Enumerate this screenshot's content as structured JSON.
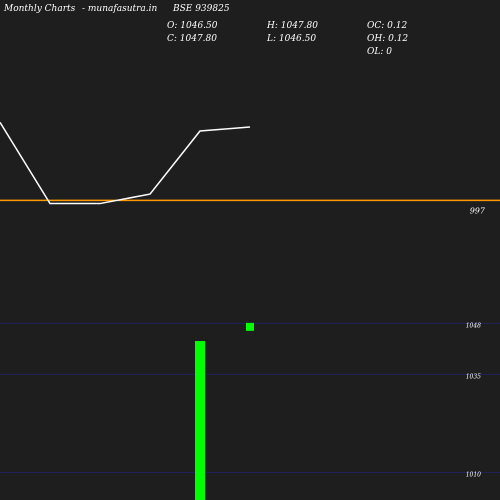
{
  "header": {
    "title": "Monthly Charts",
    "source": "- munafasutra.in",
    "symbol": "BSE 939825"
  },
  "ohlc": {
    "open_label": "O: 1046.50",
    "high_label": "H: 1047.80",
    "oc_label": "OC: 0.12",
    "close_label": "C: 1047.80",
    "low_label": "L: 1046.50",
    "oh_label": "OH: 0.12",
    "ol_label": "OL: 0"
  },
  "colors": {
    "background": "#1e1e1e",
    "line": "#ffffff",
    "reference": "#ff9900",
    "grid": "#20205a",
    "bar": "#00ff00"
  },
  "chart_data": [
    {
      "type": "line",
      "x": [
        0,
        1,
        2,
        3,
        4,
        5
      ],
      "values": [
        1046.5,
        995,
        995,
        1001,
        1041,
        1043.5
      ],
      "reference_line": {
        "value": 997,
        "label": "997"
      },
      "ylim": [
        970,
        1086
      ]
    },
    {
      "type": "bar",
      "x": [
        4
      ],
      "values": [
        1043.5
      ],
      "marker": {
        "x": 5,
        "value": 1047.1
      },
      "yticks": [
        {
          "value": 1048,
          "label": "1048"
        },
        {
          "value": 1035,
          "label": "1035"
        },
        {
          "value": 1010,
          "label": "1010"
        }
      ],
      "ylim": [
        1003,
        1057
      ]
    }
  ]
}
